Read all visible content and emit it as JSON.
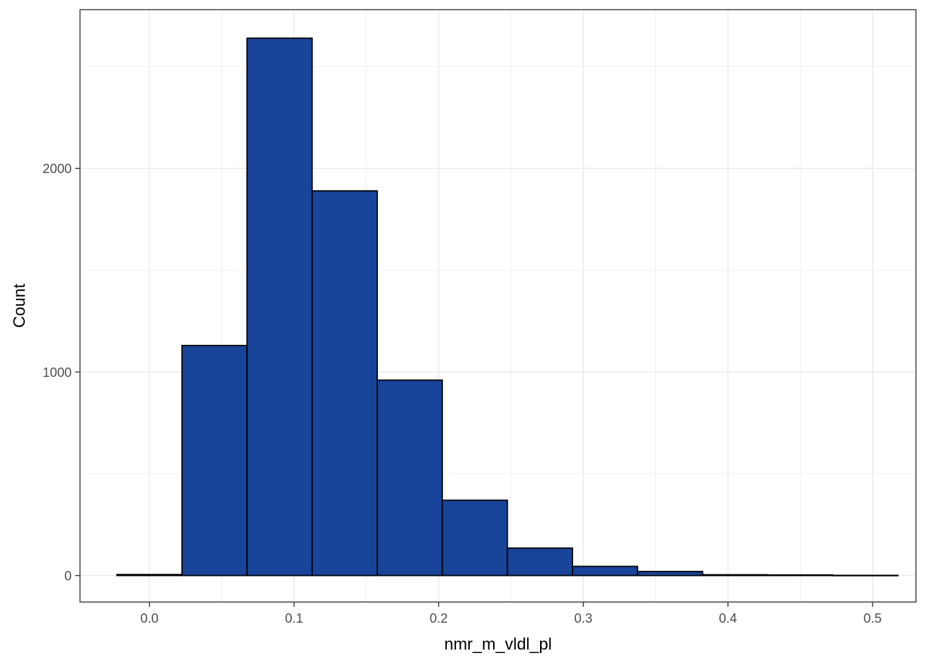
{
  "chart_data": {
    "type": "bar",
    "subtype": "histogram",
    "title": "",
    "xlabel": "nmr_m_vldl_pl",
    "ylabel": "Count",
    "bins": [
      {
        "x0": -0.0225,
        "x1": 0.0225,
        "count": 5
      },
      {
        "x0": 0.0225,
        "x1": 0.0675,
        "count": 1130
      },
      {
        "x0": 0.0675,
        "x1": 0.1125,
        "count": 2640
      },
      {
        "x0": 0.1125,
        "x1": 0.1575,
        "count": 1890
      },
      {
        "x0": 0.1575,
        "x1": 0.2025,
        "count": 960
      },
      {
        "x0": 0.2025,
        "x1": 0.2475,
        "count": 370
      },
      {
        "x0": 0.2475,
        "x1": 0.2925,
        "count": 135
      },
      {
        "x0": 0.2925,
        "x1": 0.3375,
        "count": 45
      },
      {
        "x0": 0.3375,
        "x1": 0.3825,
        "count": 20
      },
      {
        "x0": 0.3825,
        "x1": 0.4275,
        "count": 4
      },
      {
        "x0": 0.4275,
        "x1": 0.4725,
        "count": 3
      },
      {
        "x0": 0.4725,
        "x1": 0.5175,
        "count": 1
      }
    ],
    "xlim": [
      -0.048,
      0.53
    ],
    "ylim": [
      -130,
      2780
    ],
    "x_ticks": [
      0.0,
      0.1,
      0.2,
      0.3,
      0.4,
      0.5
    ],
    "x_tick_labels": [
      "0.0",
      "0.1",
      "0.2",
      "0.3",
      "0.4",
      "0.5"
    ],
    "x_minor_ticks": [
      0.05,
      0.15,
      0.25,
      0.35,
      0.45
    ],
    "y_ticks": [
      0,
      1000,
      2000
    ],
    "y_tick_labels": [
      "0",
      "1000",
      "2000"
    ],
    "y_minor_ticks": [
      500,
      1500,
      2500
    ],
    "grid": true,
    "legend": "none",
    "colors": {
      "bar_fill": "#184499",
      "bar_stroke": "#000000",
      "grid": "#ebebeb",
      "panel_border": "#333333",
      "tick_text": "#4d4d4d",
      "tick_mark": "#333333"
    }
  }
}
